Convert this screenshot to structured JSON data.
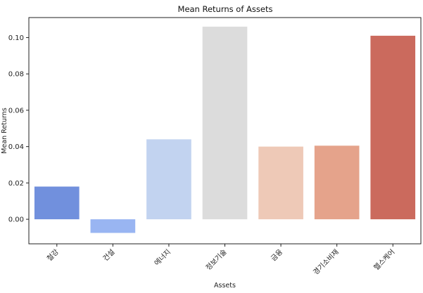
{
  "chart_data": {
    "type": "bar",
    "title": "Mean Returns of Assets",
    "xlabel": "Assets",
    "ylabel": "Mean Returns",
    "categories": [
      "철강",
      "건설",
      "에너지",
      "정보기술",
      "금융",
      "경기소비재",
      "헬스케어"
    ],
    "values": [
      0.018,
      -0.0075,
      0.044,
      0.106,
      0.04,
      0.0405,
      0.101
    ],
    "colors": [
      "#7190dd",
      "#99b5f2",
      "#c2d3f0",
      "#dcdcdc",
      "#eec9b7",
      "#e5a38b",
      "#cb6a5d"
    ],
    "ylim": [
      -0.0135,
      0.111
    ],
    "yticks": [
      0.0,
      0.02,
      0.04,
      0.06,
      0.08,
      0.1
    ],
    "ytick_labels": [
      "0.00",
      "0.02",
      "0.04",
      "0.06",
      "0.08",
      "0.10"
    ],
    "grid": false,
    "legend": "none"
  }
}
